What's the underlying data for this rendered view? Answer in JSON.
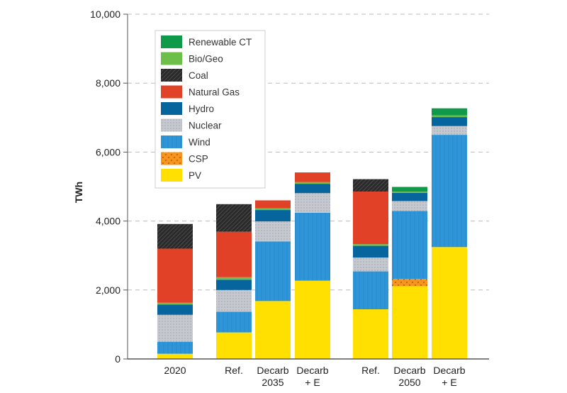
{
  "chart_data": {
    "type": "bar",
    "stacked": true,
    "ylabel": "TWh",
    "ylim": [
      0,
      10000
    ],
    "yticks": [
      0,
      2000,
      4000,
      6000,
      8000,
      10000
    ],
    "ytick_labels": [
      "0",
      "2,000",
      "4,000",
      "6,000",
      "8,000",
      "10,000"
    ],
    "grid": "horizontal dashed",
    "legend_position": "top-left",
    "categories": [
      [
        "2020"
      ],
      [
        "Ref."
      ],
      [
        "Decarb",
        "2035"
      ],
      [
        "Decarb",
        "+ E"
      ],
      [
        "Ref."
      ],
      [
        "Decarb",
        "2050"
      ],
      [
        "Decarb",
        "+ E"
      ]
    ],
    "series": [
      {
        "name": "PV",
        "color": "#FFE000",
        "pattern": "solid",
        "values": [
          150,
          770,
          1680,
          2270,
          1440,
          2110,
          3245
        ]
      },
      {
        "name": "CSP",
        "color": "#F7941D",
        "pattern": "dots",
        "values": [
          0,
          0,
          0,
          0,
          0,
          210,
          0
        ]
      },
      {
        "name": "Wind",
        "color": "#2E96D8",
        "pattern": "vertical-lines",
        "values": [
          350,
          600,
          1730,
          1970,
          1100,
          1970,
          3255
        ]
      },
      {
        "name": "Nuclear",
        "color": "#C5C9CF",
        "pattern": "crosshatch",
        "values": [
          780,
          630,
          580,
          570,
          400,
          290,
          255
        ]
      },
      {
        "name": "Hydro",
        "color": "#05659C",
        "pattern": "solid",
        "values": [
          300,
          300,
          330,
          270,
          340,
          240,
          260
        ]
      },
      {
        "name": "Bio/Geo",
        "color": "#6CC04A",
        "pattern": "solid",
        "values": [
          50,
          70,
          50,
          50,
          50,
          35,
          50
        ]
      },
      {
        "name": "Natural Gas",
        "color": "#E14127",
        "pattern": "solid",
        "values": [
          1570,
          1320,
          230,
          280,
          1525,
          0,
          0
        ]
      },
      {
        "name": "Coal",
        "color": "#2A2A2A",
        "pattern": "diagonal-hatch",
        "values": [
          715,
          800,
          0,
          0,
          360,
          0,
          0
        ]
      },
      {
        "name": "Renewable CT",
        "color": "#0E9A48",
        "pattern": "solid",
        "values": [
          0,
          0,
          0,
          0,
          0,
          135,
          205
        ]
      }
    ],
    "legend_order": [
      "Renewable CT",
      "Bio/Geo",
      "Coal",
      "Natural Gas",
      "Hydro",
      "Nuclear",
      "Wind",
      "CSP",
      "PV"
    ]
  }
}
